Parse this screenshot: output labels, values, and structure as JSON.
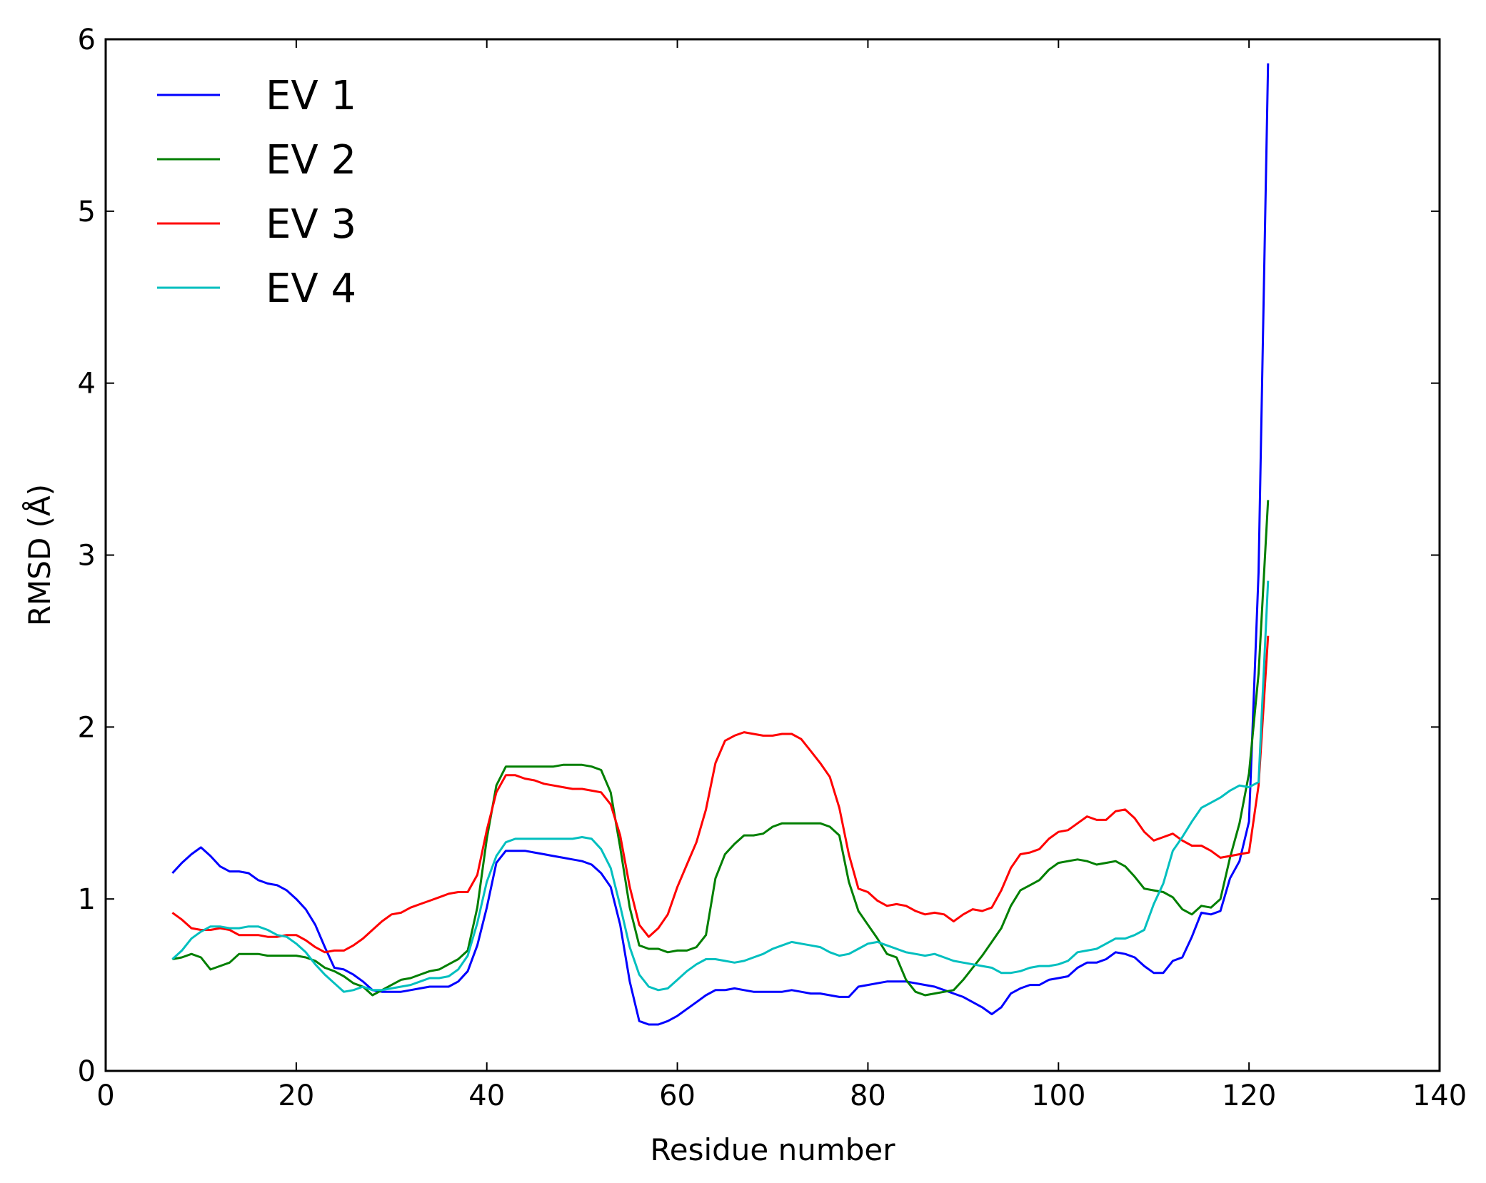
{
  "chart_data": {
    "type": "line",
    "xlabel": "Residue number",
    "ylabel": "RMSD (Å)",
    "xlim": [
      0,
      140
    ],
    "ylim": [
      0,
      6
    ],
    "xticks": [
      0,
      20,
      40,
      60,
      80,
      100,
      120,
      140
    ],
    "yticks": [
      0,
      1,
      2,
      3,
      4,
      5,
      6
    ],
    "grid": false,
    "legend_position": "top-left",
    "x": [
      7,
      8,
      9,
      10,
      11,
      12,
      13,
      14,
      15,
      16,
      17,
      18,
      19,
      20,
      21,
      22,
      23,
      24,
      25,
      26,
      27,
      28,
      29,
      30,
      31,
      32,
      33,
      34,
      35,
      36,
      37,
      38,
      39,
      40,
      41,
      42,
      43,
      44,
      45,
      46,
      47,
      48,
      49,
      50,
      51,
      52,
      53,
      54,
      55,
      56,
      57,
      58,
      59,
      60,
      61,
      62,
      63,
      64,
      65,
      66,
      67,
      68,
      69,
      70,
      71,
      72,
      73,
      74,
      75,
      76,
      77,
      78,
      79,
      80,
      81,
      82,
      83,
      84,
      85,
      86,
      87,
      88,
      89,
      90,
      91,
      92,
      93,
      94,
      95,
      96,
      97,
      98,
      99,
      100,
      101,
      102,
      103,
      104,
      105,
      106,
      107,
      108,
      109,
      110,
      111,
      112,
      113,
      114,
      115,
      116,
      117,
      118,
      119,
      120,
      121,
      122
    ],
    "series": [
      {
        "name": "EV 1",
        "color": "#0000ff",
        "values": [
          1.15,
          1.21,
          1.26,
          1.3,
          1.25,
          1.19,
          1.16,
          1.16,
          1.15,
          1.11,
          1.09,
          1.08,
          1.05,
          1.0,
          0.94,
          0.85,
          0.72,
          0.6,
          0.59,
          0.56,
          0.52,
          0.47,
          0.46,
          0.46,
          0.46,
          0.47,
          0.48,
          0.49,
          0.49,
          0.49,
          0.52,
          0.58,
          0.73,
          0.95,
          1.21,
          1.28,
          1.28,
          1.28,
          1.27,
          1.26,
          1.25,
          1.24,
          1.23,
          1.22,
          1.2,
          1.15,
          1.07,
          0.85,
          0.52,
          0.29,
          0.27,
          0.27,
          0.29,
          0.32,
          0.36,
          0.4,
          0.44,
          0.47,
          0.47,
          0.48,
          0.47,
          0.46,
          0.46,
          0.46,
          0.46,
          0.47,
          0.46,
          0.45,
          0.45,
          0.44,
          0.43,
          0.43,
          0.49,
          0.5,
          0.51,
          0.52,
          0.52,
          0.52,
          0.51,
          0.5,
          0.49,
          0.47,
          0.45,
          0.43,
          0.4,
          0.37,
          0.33,
          0.37,
          0.45,
          0.48,
          0.5,
          0.5,
          0.53,
          0.54,
          0.55,
          0.6,
          0.63,
          0.63,
          0.65,
          0.69,
          0.68,
          0.66,
          0.61,
          0.57,
          0.57,
          0.64,
          0.66,
          0.78,
          0.92,
          0.91,
          0.93,
          1.12,
          1.22,
          1.45,
          2.9,
          5.86
        ]
      },
      {
        "name": "EV 2",
        "color": "#007f00",
        "values": [
          0.65,
          0.66,
          0.68,
          0.66,
          0.59,
          0.61,
          0.63,
          0.68,
          0.68,
          0.68,
          0.67,
          0.67,
          0.67,
          0.67,
          0.66,
          0.64,
          0.6,
          0.58,
          0.55,
          0.51,
          0.49,
          0.44,
          0.47,
          0.5,
          0.53,
          0.54,
          0.56,
          0.58,
          0.59,
          0.62,
          0.65,
          0.7,
          0.95,
          1.35,
          1.66,
          1.77,
          1.77,
          1.77,
          1.77,
          1.77,
          1.77,
          1.78,
          1.78,
          1.78,
          1.77,
          1.75,
          1.62,
          1.3,
          0.95,
          0.73,
          0.71,
          0.71,
          0.69,
          0.7,
          0.7,
          0.72,
          0.79,
          1.12,
          1.26,
          1.32,
          1.37,
          1.37,
          1.38,
          1.42,
          1.44,
          1.44,
          1.44,
          1.44,
          1.44,
          1.42,
          1.37,
          1.1,
          0.93,
          0.85,
          0.77,
          0.68,
          0.66,
          0.53,
          0.46,
          0.44,
          0.45,
          0.46,
          0.47,
          0.53,
          0.6,
          0.67,
          0.75,
          0.83,
          0.96,
          1.05,
          1.08,
          1.11,
          1.17,
          1.21,
          1.22,
          1.23,
          1.22,
          1.2,
          1.21,
          1.22,
          1.19,
          1.13,
          1.06,
          1.05,
          1.04,
          1.01,
          0.94,
          0.91,
          0.96,
          0.95,
          1.0,
          1.24,
          1.44,
          1.73,
          2.31,
          3.32
        ]
      },
      {
        "name": "EV 3",
        "color": "#ff0000",
        "values": [
          0.92,
          0.88,
          0.83,
          0.82,
          0.82,
          0.83,
          0.82,
          0.79,
          0.79,
          0.79,
          0.78,
          0.78,
          0.79,
          0.79,
          0.76,
          0.72,
          0.69,
          0.7,
          0.7,
          0.73,
          0.77,
          0.82,
          0.87,
          0.91,
          0.92,
          0.95,
          0.97,
          0.99,
          1.01,
          1.03,
          1.04,
          1.04,
          1.14,
          1.4,
          1.62,
          1.72,
          1.72,
          1.7,
          1.69,
          1.67,
          1.66,
          1.65,
          1.64,
          1.64,
          1.63,
          1.62,
          1.55,
          1.37,
          1.07,
          0.85,
          0.78,
          0.83,
          0.91,
          1.07,
          1.2,
          1.33,
          1.52,
          1.79,
          1.92,
          1.95,
          1.97,
          1.96,
          1.95,
          1.95,
          1.96,
          1.96,
          1.93,
          1.86,
          1.79,
          1.71,
          1.53,
          1.26,
          1.06,
          1.04,
          0.99,
          0.96,
          0.97,
          0.96,
          0.93,
          0.91,
          0.92,
          0.91,
          0.87,
          0.91,
          0.94,
          0.93,
          0.95,
          1.05,
          1.18,
          1.26,
          1.27,
          1.29,
          1.35,
          1.39,
          1.4,
          1.44,
          1.48,
          1.46,
          1.46,
          1.51,
          1.52,
          1.47,
          1.39,
          1.34,
          1.36,
          1.38,
          1.34,
          1.31,
          1.31,
          1.28,
          1.24,
          1.25,
          1.26,
          1.27,
          1.66,
          2.53
        ]
      },
      {
        "name": "EV 4",
        "color": "#00bfbf",
        "values": [
          0.65,
          0.7,
          0.77,
          0.81,
          0.84,
          0.84,
          0.83,
          0.83,
          0.84,
          0.84,
          0.82,
          0.79,
          0.78,
          0.74,
          0.69,
          0.62,
          0.56,
          0.51,
          0.46,
          0.47,
          0.49,
          0.47,
          0.47,
          0.48,
          0.49,
          0.5,
          0.52,
          0.54,
          0.54,
          0.55,
          0.59,
          0.67,
          0.86,
          1.1,
          1.25,
          1.33,
          1.35,
          1.35,
          1.35,
          1.35,
          1.35,
          1.35,
          1.35,
          1.36,
          1.35,
          1.29,
          1.18,
          0.96,
          0.72,
          0.56,
          0.49,
          0.47,
          0.48,
          0.53,
          0.58,
          0.62,
          0.65,
          0.65,
          0.64,
          0.63,
          0.64,
          0.66,
          0.68,
          0.71,
          0.73,
          0.75,
          0.74,
          0.73,
          0.72,
          0.69,
          0.67,
          0.68,
          0.71,
          0.74,
          0.75,
          0.73,
          0.71,
          0.69,
          0.68,
          0.67,
          0.68,
          0.66,
          0.64,
          0.63,
          0.62,
          0.61,
          0.6,
          0.57,
          0.57,
          0.58,
          0.6,
          0.61,
          0.61,
          0.62,
          0.64,
          0.69,
          0.7,
          0.71,
          0.74,
          0.77,
          0.77,
          0.79,
          0.82,
          0.97,
          1.09,
          1.28,
          1.36,
          1.45,
          1.53,
          1.56,
          1.59,
          1.63,
          1.66,
          1.65,
          1.68,
          2.85
        ]
      }
    ]
  }
}
